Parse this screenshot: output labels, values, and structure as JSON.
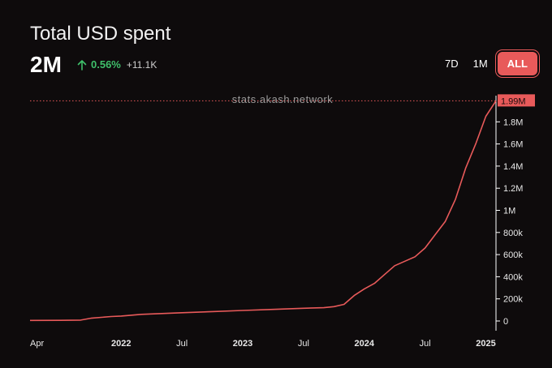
{
  "header": {
    "title": "Total USD spent",
    "value": "2M",
    "change_pct": "0.56%",
    "change_abs": "+11.1K",
    "change_direction_icon": "arrow-up-icon",
    "range_buttons": [
      {
        "label": "7D",
        "active": false
      },
      {
        "label": "1M",
        "active": false
      },
      {
        "label": "ALL",
        "active": true
      }
    ]
  },
  "watermark": "stats.akash.network",
  "colors": {
    "line": "#e85a5a",
    "up": "#3fbf6a",
    "background": "#0e0b0c"
  },
  "chart_data": {
    "type": "line",
    "title": "Total USD spent",
    "x_ticks": [
      {
        "label": "Apr",
        "date": "2021-04",
        "bold": false
      },
      {
        "label": "2022",
        "date": "2022-01",
        "bold": true
      },
      {
        "label": "Jul",
        "date": "2022-07",
        "bold": false
      },
      {
        "label": "2023",
        "date": "2023-01",
        "bold": true
      },
      {
        "label": "Jul",
        "date": "2023-07",
        "bold": false
      },
      {
        "label": "2024",
        "date": "2024-01",
        "bold": true
      },
      {
        "label": "Jul",
        "date": "2024-07",
        "bold": false
      },
      {
        "label": "2025",
        "date": "2025-01",
        "bold": true
      }
    ],
    "y_ticks": [
      "0",
      "200k",
      "400k",
      "600k",
      "800k",
      "1M",
      "1.2M",
      "1.4M",
      "1.6M",
      "1.8M"
    ],
    "ylim": [
      0,
      2000000
    ],
    "last_value_label": "1.99M",
    "last_value": 1990000,
    "grid": false,
    "series": [
      {
        "x": [
          "2021-04",
          "2021-07",
          "2021-09",
          "2021-10",
          "2021-12",
          "2022-01",
          "2022-03",
          "2022-07",
          "2022-10",
          "2023-01",
          "2023-04",
          "2023-07",
          "2023-09",
          "2023-10",
          "2023-11",
          "2023-12",
          "2024-01",
          "2024-02",
          "2024-03",
          "2024-04",
          "2024-05",
          "2024-06",
          "2024-07",
          "2024-08",
          "2024-09",
          "2024-10",
          "2024-11",
          "2024-12",
          "2025-01",
          "2025-02"
        ],
        "y": [
          5000,
          6000,
          8000,
          25000,
          40000,
          45000,
          60000,
          75000,
          85000,
          95000,
          105000,
          115000,
          120000,
          130000,
          150000,
          230000,
          290000,
          340000,
          420000,
          500000,
          540000,
          580000,
          660000,
          780000,
          900000,
          1100000,
          1380000,
          1600000,
          1850000,
          1990000
        ]
      }
    ]
  }
}
